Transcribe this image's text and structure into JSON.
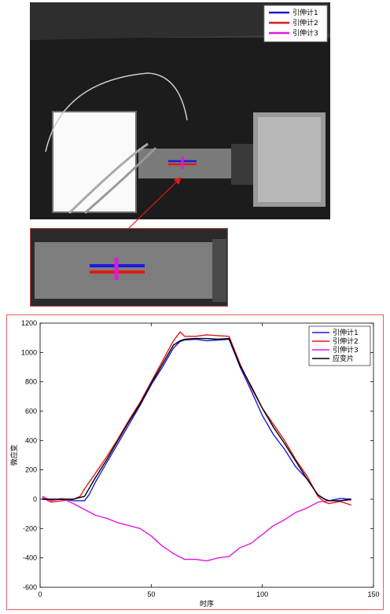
{
  "photo": {
    "legend": [
      {
        "label": "引伸计1",
        "color": "#1a1adc"
      },
      {
        "label": "引伸计2",
        "color": "#e01818"
      },
      {
        "label": "引伸计3",
        "color": "#e018e0"
      }
    ],
    "colors": {
      "frame": "#d04040",
      "arrow": "#e01818"
    }
  },
  "chart_data": {
    "type": "line",
    "xlabel": "时序",
    "ylabel": "微应变",
    "xlim": [
      0,
      150
    ],
    "ylim": [
      -600,
      1200
    ],
    "xticks": [
      "0",
      "50",
      "100",
      "150"
    ],
    "yticks": [
      "-600",
      "-400",
      "-200",
      "0",
      "200",
      "400",
      "600",
      "800",
      "1000",
      "1200"
    ],
    "grid": false,
    "legend_position": "top-right",
    "series": [
      {
        "name": "引伸计1",
        "color": "#1a1adc",
        "x": [
          1,
          5,
          10,
          15,
          20,
          22,
          25,
          30,
          35,
          40,
          45,
          50,
          55,
          60,
          63,
          65,
          70,
          75,
          80,
          85,
          90,
          95,
          100,
          105,
          110,
          115,
          120,
          125,
          128,
          130,
          135,
          140
        ],
        "y": [
          5,
          -5,
          0,
          -10,
          -10,
          30,
          120,
          250,
          380,
          510,
          640,
          780,
          900,
          1030,
          1075,
          1085,
          1090,
          1080,
          1085,
          1090,
          900,
          740,
          570,
          440,
          340,
          220,
          140,
          30,
          0,
          -10,
          5,
          0
        ]
      },
      {
        "name": "引伸计2",
        "color": "#e01818",
        "x": [
          1,
          5,
          10,
          15,
          18,
          20,
          25,
          30,
          35,
          40,
          45,
          50,
          55,
          60,
          63,
          65,
          70,
          75,
          80,
          85,
          90,
          95,
          100,
          105,
          110,
          115,
          120,
          125,
          128,
          130,
          135,
          140
        ],
        "y": [
          10,
          -20,
          -10,
          0,
          20,
          70,
          180,
          290,
          410,
          540,
          660,
          800,
          940,
          1080,
          1140,
          1110,
          1110,
          1120,
          1115,
          1110,
          920,
          760,
          620,
          510,
          400,
          270,
          160,
          20,
          -20,
          -30,
          -15,
          -40
        ]
      },
      {
        "name": "引伸计3",
        "color": "#e018e0",
        "x": [
          1,
          5,
          10,
          15,
          20,
          25,
          30,
          35,
          40,
          45,
          50,
          55,
          60,
          65,
          70,
          75,
          80,
          85,
          90,
          95,
          100,
          105,
          110,
          115,
          120,
          125,
          130,
          135,
          140
        ],
        "y": [
          20,
          -10,
          5,
          -30,
          -70,
          -110,
          -130,
          -160,
          -180,
          -200,
          -250,
          -320,
          -370,
          -410,
          -410,
          -420,
          -400,
          -390,
          -330,
          -300,
          -240,
          -180,
          -140,
          -90,
          -60,
          -20,
          -10,
          -10,
          -5
        ]
      },
      {
        "name": "应变片",
        "color": "#000000",
        "x": [
          1,
          5,
          10,
          15,
          20,
          25,
          30,
          35,
          40,
          45,
          50,
          55,
          60,
          63,
          65,
          70,
          75,
          80,
          85,
          90,
          95,
          100,
          105,
          110,
          115,
          120,
          125,
          128,
          130,
          135,
          140
        ],
        "y": [
          0,
          0,
          0,
          0,
          20,
          150,
          270,
          400,
          530,
          650,
          790,
          920,
          1050,
          1080,
          1090,
          1095,
          1095,
          1090,
          1095,
          910,
          770,
          620,
          490,
          380,
          260,
          140,
          30,
          0,
          -10,
          -10,
          0
        ]
      }
    ]
  }
}
